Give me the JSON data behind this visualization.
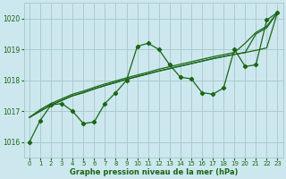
{
  "title": "Graphe pression niveau de la mer (hPa)",
  "bg_color": "#cce8ee",
  "grid_color": "#aacccc",
  "line_color": "#1a6618",
  "xlim": [
    -0.5,
    23.5
  ],
  "ylim": [
    1015.5,
    1020.5
  ],
  "yticks": [
    1016,
    1017,
    1018,
    1019,
    1020
  ],
  "xticks": [
    0,
    1,
    2,
    3,
    4,
    5,
    6,
    7,
    8,
    9,
    10,
    11,
    12,
    13,
    14,
    15,
    16,
    17,
    18,
    19,
    20,
    21,
    22,
    23
  ],
  "series_main": [
    1016.0,
    1016.7,
    1017.2,
    1017.25,
    1017.0,
    1016.6,
    1016.65,
    1017.25,
    1017.6,
    1018.0,
    1019.1,
    1019.2,
    1019.0,
    1018.5,
    1018.1,
    1018.05,
    1017.6,
    1017.55,
    1017.75,
    1019.0,
    1018.45,
    1018.5,
    1019.95,
    1020.2
  ],
  "series_trend1": [
    1016.8,
    1017.0,
    1017.2,
    1017.35,
    1017.5,
    1017.6,
    1017.72,
    1017.83,
    1017.93,
    1018.03,
    1018.12,
    1018.21,
    1018.3,
    1018.38,
    1018.46,
    1018.54,
    1018.62,
    1018.7,
    1018.77,
    1018.84,
    1018.9,
    1018.97,
    1019.05,
    1020.2
  ],
  "series_trend2": [
    1016.8,
    1017.0,
    1017.2,
    1017.35,
    1017.5,
    1017.6,
    1017.72,
    1017.83,
    1017.93,
    1018.03,
    1018.12,
    1018.21,
    1018.3,
    1018.38,
    1018.46,
    1018.54,
    1018.62,
    1018.7,
    1018.77,
    1018.84,
    1018.9,
    1019.5,
    1019.7,
    1020.2
  ],
  "series_trend3": [
    1016.8,
    1017.05,
    1017.25,
    1017.4,
    1017.55,
    1017.65,
    1017.77,
    1017.88,
    1017.98,
    1018.08,
    1018.17,
    1018.26,
    1018.36,
    1018.44,
    1018.52,
    1018.6,
    1018.68,
    1018.76,
    1018.83,
    1018.9,
    1019.2,
    1019.55,
    1019.75,
    1020.2
  ]
}
